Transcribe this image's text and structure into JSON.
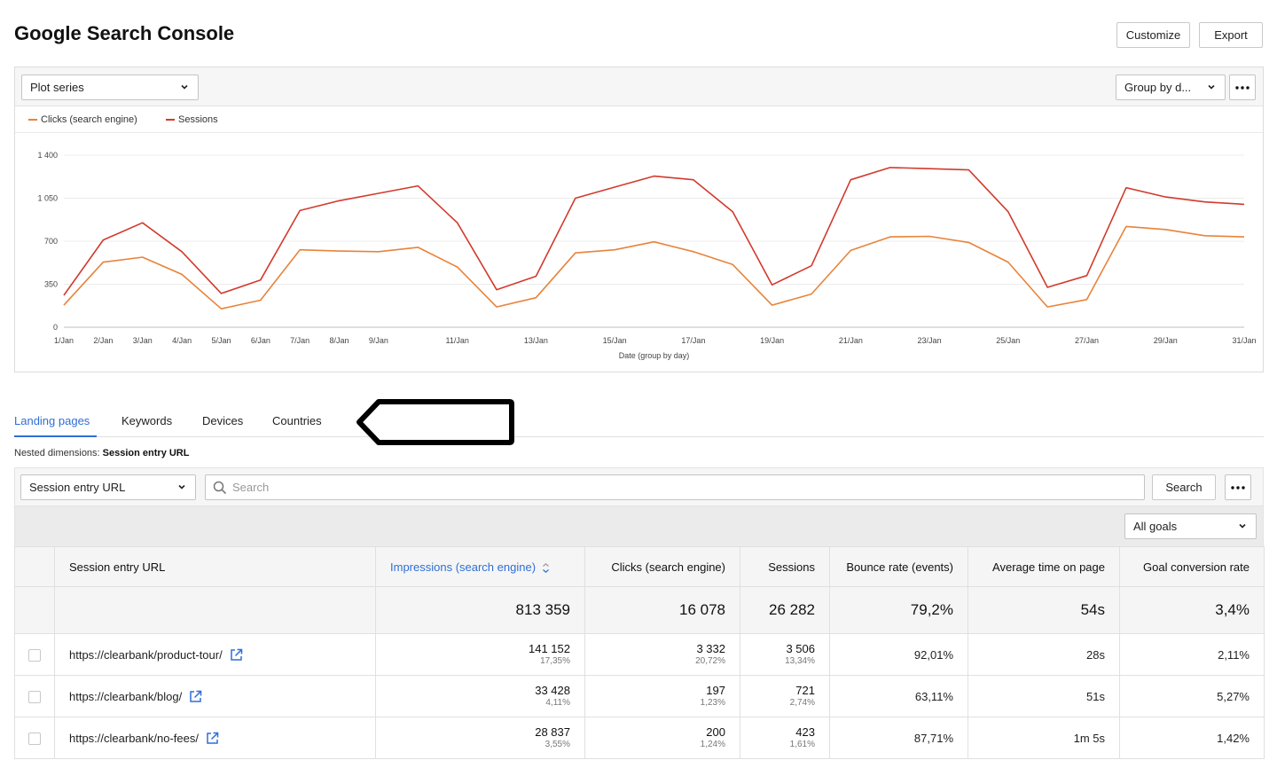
{
  "header": {
    "title": "Google Search Console",
    "customize_label": "Customize",
    "export_label": "Export"
  },
  "chart_toolbar": {
    "plot_series": "Plot series",
    "group_by": "Group by d..."
  },
  "colors": {
    "clicks": "#e8833a",
    "sessions": "#d23a2c",
    "accent": "#2f6fd6"
  },
  "chart_data": {
    "type": "line",
    "xlabel": "Date (group by day)",
    "ylabel": "",
    "ylim": [
      0,
      1400
    ],
    "yticks": [
      0,
      350,
      700,
      1050,
      1400
    ],
    "ytick_labels": [
      "0",
      "350",
      "700",
      "1 050",
      "1 400"
    ],
    "x": [
      "1/Jan",
      "2/Jan",
      "3/Jan",
      "4/Jan",
      "5/Jan",
      "6/Jan",
      "7/Jan",
      "8/Jan",
      "9/Jan",
      "10/Jan",
      "11/Jan",
      "12/Jan",
      "13/Jan",
      "14/Jan",
      "15/Jan",
      "16/Jan",
      "17/Jan",
      "18/Jan",
      "19/Jan",
      "20/Jan",
      "21/Jan",
      "22/Jan",
      "23/Jan",
      "24/Jan",
      "25/Jan",
      "26/Jan",
      "27/Jan",
      "28/Jan",
      "29/Jan",
      "30/Jan",
      "31/Jan"
    ],
    "x_tick_labels": [
      "1/Jan",
      "2/Jan",
      "3/Jan",
      "4/Jan",
      "5/Jan",
      "6/Jan",
      "7/Jan",
      "8/Jan",
      "9/Jan",
      "",
      "11/Jan",
      "",
      "13/Jan",
      "",
      "15/Jan",
      "",
      "17/Jan",
      "",
      "19/Jan",
      "",
      "21/Jan",
      "",
      "23/Jan",
      "",
      "25/Jan",
      "",
      "27/Jan",
      "",
      "29/Jan",
      "",
      "31/Jan"
    ],
    "legend_position": "top-left",
    "grid": true,
    "series": [
      {
        "name": "Clicks (search engine)",
        "values": [
          180,
          530,
          570,
          430,
          150,
          220,
          630,
          620,
          615,
          650,
          490,
          165,
          240,
          605,
          630,
          695,
          615,
          510,
          180,
          270,
          625,
          735,
          740,
          690,
          530,
          165,
          225,
          820,
          795,
          745,
          735
        ]
      },
      {
        "name": "Sessions",
        "values": [
          260,
          710,
          850,
          615,
          275,
          385,
          950,
          1030,
          1090,
          1150,
          850,
          305,
          415,
          1050,
          1140,
          1230,
          1200,
          940,
          345,
          500,
          1200,
          1300,
          1290,
          1280,
          940,
          325,
          420,
          1135,
          1060,
          1020,
          1000
        ]
      }
    ]
  },
  "tabs": [
    {
      "label": "Landing pages",
      "active": true
    },
    {
      "label": "Keywords",
      "active": false
    },
    {
      "label": "Devices",
      "active": false
    },
    {
      "label": "Countries",
      "active": false
    }
  ],
  "nested": {
    "prefix": "Nested dimensions: ",
    "value": "Session entry URL"
  },
  "filter": {
    "dimension": "Session entry URL",
    "search_placeholder": "Search",
    "search_button": "Search",
    "goals": "All goals"
  },
  "table": {
    "columns": [
      "Session entry URL",
      "Impressions (search engine)",
      "Clicks (search engine)",
      "Sessions",
      "Bounce rate (events)",
      "Average time on page",
      "Goal conversion rate"
    ],
    "totals": [
      "813 359",
      "16 078",
      "26 282",
      "79,2%",
      "54s",
      "3,4%"
    ],
    "rows": [
      {
        "url": "https://clearbank/product-tour/",
        "impressions": "141 152",
        "impressions_pct": "17,35%",
        "clicks": "3 332",
        "clicks_pct": "20,72%",
        "sessions": "3 506",
        "sessions_pct": "13,34%",
        "bounce": "92,01%",
        "avg_time": "28s",
        "conversion": "2,11%"
      },
      {
        "url": "https://clearbank/blog/",
        "impressions": "33 428",
        "impressions_pct": "4,11%",
        "clicks": "197",
        "clicks_pct": "1,23%",
        "sessions": "721",
        "sessions_pct": "2,74%",
        "bounce": "63,11%",
        "avg_time": "51s",
        "conversion": "5,27%"
      },
      {
        "url": "https://clearbank/no-fees/",
        "impressions": "28 837",
        "impressions_pct": "3,55%",
        "clicks": "200",
        "clicks_pct": "1,24%",
        "sessions": "423",
        "sessions_pct": "1,61%",
        "bounce": "87,71%",
        "avg_time": "1m 5s",
        "conversion": "1,42%"
      }
    ]
  }
}
